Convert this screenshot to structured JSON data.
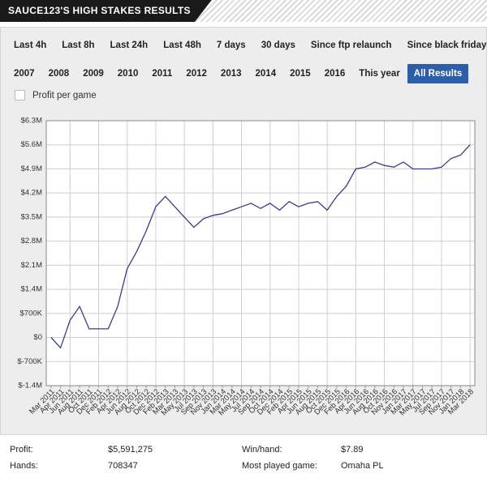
{
  "header": {
    "title": "SAUCE123'S HIGH STAKES RESULTS"
  },
  "filters": {
    "periods": [
      "Last 4h",
      "Last 8h",
      "Last 24h",
      "Last 48h",
      "7 days",
      "30 days",
      "Since ftp relaunch",
      "Since black friday"
    ],
    "years": [
      "2007",
      "2008",
      "2009",
      "2010",
      "2011",
      "2012",
      "2013",
      "2014",
      "2015",
      "2016",
      "This year",
      "All Results"
    ]
  },
  "checkbox": {
    "label": "Profit per game"
  },
  "chart_data": {
    "type": "line",
    "categories": [
      "Mar 2011",
      "Apr 2011",
      "Jun 2011",
      "Aug 2011",
      "Oct 2011",
      "Dec 2011",
      "Feb 2012",
      "Apr 2012",
      "Jun 2012",
      "Aug 2012",
      "Oct 2012",
      "Dec 2012",
      "Feb 2013",
      "Mar 2013",
      "May 2013",
      "Jul 2013",
      "Sep 2013",
      "Nov 2013",
      "Jan 2014",
      "Mar 2014",
      "May 2014",
      "Jul 2014",
      "Sep 2014",
      "Oct 2014",
      "Dec 2014",
      "Feb 2015",
      "Apr 2015",
      "Jun 2015",
      "Aug 2015",
      "Oct 2015",
      "Dec 2015",
      "Feb 2016",
      "Apr 2016",
      "Jun 2016",
      "Aug 2016",
      "Oct 2016",
      "Nov 2016",
      "Jan 2017",
      "Mar 2017",
      "May 2017",
      "Jul 2017",
      "Sep 2017",
      "Nov 2017",
      "Jan 2018",
      "Mar 2018"
    ],
    "series": [
      {
        "name": "Profit",
        "color": "#3b3b8c",
        "values": [
          0,
          -300000,
          500000,
          900000,
          250000,
          250000,
          250000,
          900000,
          2000000,
          2500000,
          3100000,
          3800000,
          4100000,
          3800000,
          3500000,
          3200000,
          3450000,
          3550000,
          3600000,
          3700000,
          3800000,
          3900000,
          3750000,
          3900000,
          3700000,
          3950000,
          3800000,
          3900000,
          3950000,
          3700000,
          4100000,
          4400000,
          4900000,
          4950000,
          5100000,
          5000000,
          4950000,
          5100000,
          4900000,
          4900000,
          4900000,
          4950000,
          5200000,
          5300000,
          5600000
        ]
      }
    ],
    "ylim": [
      -1400000,
      6300000
    ],
    "yticks": [
      {
        "value": -1400000,
        "label": "$-1.4M"
      },
      {
        "value": -700000,
        "label": "$-700K"
      },
      {
        "value": 0,
        "label": "$0"
      },
      {
        "value": 700000,
        "label": "$700K"
      },
      {
        "value": 1400000,
        "label": "$1.4M"
      },
      {
        "value": 2100000,
        "label": "$2.1M"
      },
      {
        "value": 2800000,
        "label": "$2.8M"
      },
      {
        "value": 3500000,
        "label": "$3.5M"
      },
      {
        "value": 4200000,
        "label": "$4.2M"
      },
      {
        "value": 4900000,
        "label": "$4.9M"
      },
      {
        "value": 5600000,
        "label": "$5.6M"
      },
      {
        "value": 6300000,
        "label": "$6.3M"
      }
    ],
    "grid": true
  },
  "stats": {
    "rows": [
      [
        "Profit:",
        "$5,591,275",
        "Win/hand:",
        "$7.89"
      ],
      [
        "Hands:",
        "708347",
        "Most played game:",
        "Omaha PL"
      ]
    ]
  }
}
